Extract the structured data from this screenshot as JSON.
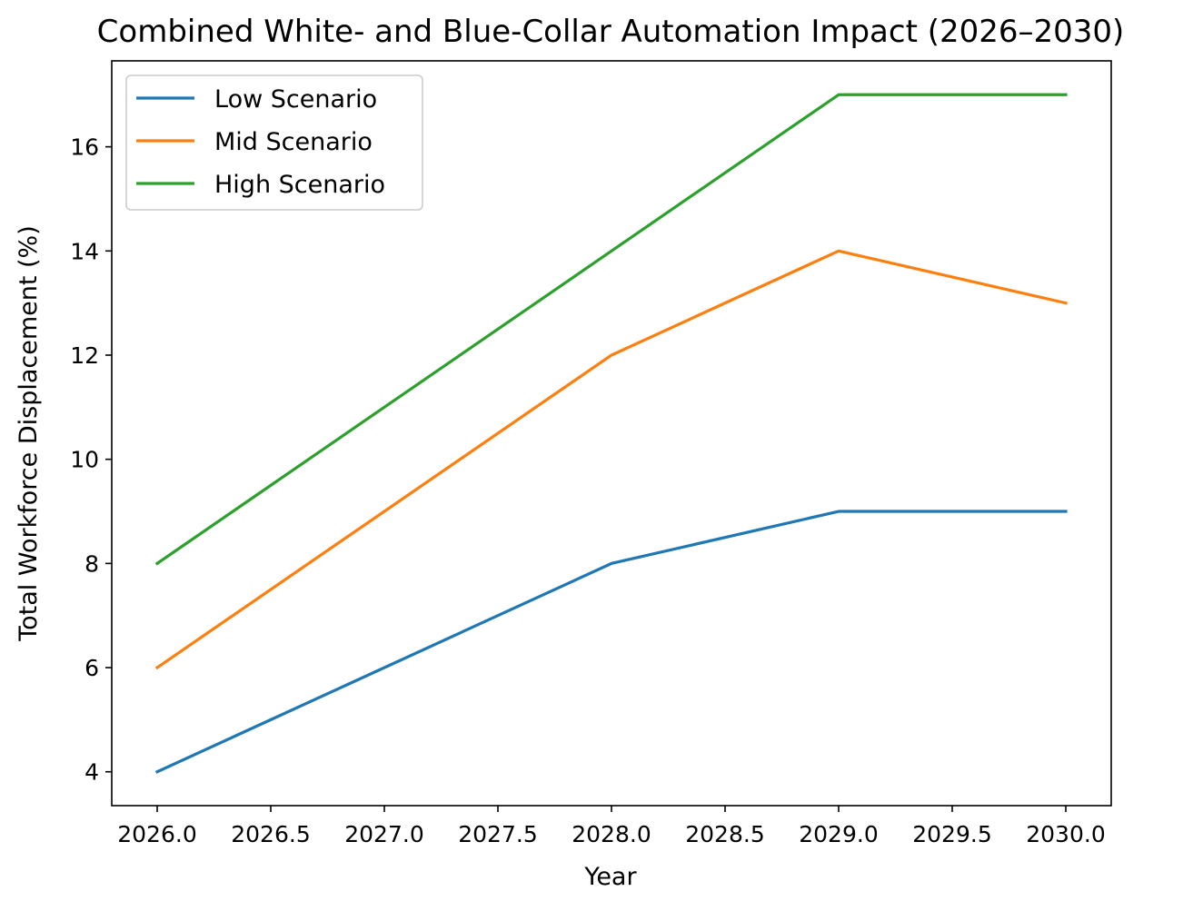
{
  "chart_data": {
    "type": "line",
    "title": "Combined White- and Blue-Collar Automation Impact (2026–2030)",
    "xlabel": "Year",
    "ylabel": "Total Workforce Displacement (%)",
    "x": [
      2026,
      2028,
      2029,
      2030
    ],
    "xlim": [
      2025.8,
      2030.2
    ],
    "ylim": [
      3.35,
      17.65
    ],
    "xticks": [
      2026.0,
      2026.5,
      2027.0,
      2027.5,
      2028.0,
      2028.5,
      2029.0,
      2029.5,
      2030.0
    ],
    "xtick_labels": [
      "2026.0",
      "2026.5",
      "2027.0",
      "2027.5",
      "2028.0",
      "2028.5",
      "2029.0",
      "2029.5",
      "2030.0"
    ],
    "yticks": [
      4,
      6,
      8,
      10,
      12,
      14,
      16
    ],
    "ytick_labels": [
      "4",
      "6",
      "8",
      "10",
      "12",
      "14",
      "16"
    ],
    "grid": false,
    "legend_position": "upper-left",
    "series": [
      {
        "name": "Low Scenario",
        "values": [
          4,
          8,
          9,
          9
        ],
        "color": "#1f77b4"
      },
      {
        "name": "Mid Scenario",
        "values": [
          6,
          12,
          14,
          13
        ],
        "color": "#ff7f0e"
      },
      {
        "name": "High Scenario",
        "values": [
          8,
          14,
          17,
          17
        ],
        "color": "#2ca02c"
      }
    ]
  }
}
